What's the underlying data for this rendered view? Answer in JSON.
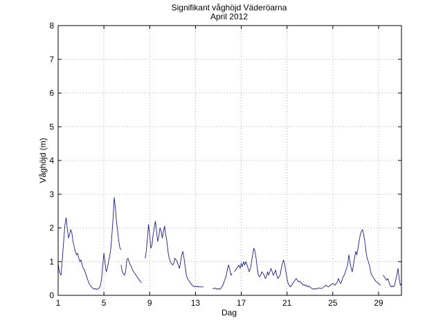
{
  "chart_data": {
    "type": "line",
    "title": "Signifikant våghöjd Väderöarna",
    "subtitle": "April 2012",
    "xlabel": "Dag",
    "ylabel": "Våghöjd (m)",
    "xlim": [
      1,
      31
    ],
    "ylim": [
      0,
      8
    ],
    "xticks": [
      1,
      5,
      9,
      13,
      17,
      21,
      25,
      29
    ],
    "yticks": [
      0,
      1,
      2,
      3,
      4,
      5,
      6,
      7,
      8
    ],
    "grid": true,
    "line_color": "#1a1a8c",
    "series": [
      {
        "segments": [
          [
            [
              1.0,
              0.95
            ],
            [
              1.1,
              0.7
            ],
            [
              1.25,
              0.6
            ],
            [
              1.35,
              1.0
            ],
            [
              1.5,
              1.7
            ],
            [
              1.6,
              2.1
            ],
            [
              1.7,
              2.3
            ],
            [
              1.8,
              2.0
            ],
            [
              1.9,
              1.7
            ],
            [
              2.0,
              1.8
            ],
            [
              2.1,
              1.95
            ],
            [
              2.2,
              1.85
            ],
            [
              2.3,
              1.6
            ],
            [
              2.4,
              1.45
            ],
            [
              2.5,
              1.3
            ],
            [
              2.6,
              1.2
            ],
            [
              2.7,
              1.25
            ],
            [
              2.8,
              1.1
            ],
            [
              2.9,
              1.0
            ],
            [
              3.0,
              1.05
            ],
            [
              3.1,
              0.9
            ],
            [
              3.2,
              0.8
            ],
            [
              3.3,
              0.75
            ],
            [
              3.4,
              0.65
            ],
            [
              3.5,
              0.55
            ],
            [
              3.6,
              0.45
            ],
            [
              3.7,
              0.35
            ],
            [
              3.8,
              0.3
            ],
            [
              3.9,
              0.25
            ],
            [
              4.0,
              0.22
            ],
            [
              4.1,
              0.2
            ],
            [
              4.2,
              0.18
            ],
            [
              4.3,
              0.2
            ],
            [
              4.4,
              0.17
            ],
            [
              4.5,
              0.2
            ],
            [
              4.6,
              0.22
            ],
            [
              4.7,
              0.3
            ],
            [
              4.8,
              0.5
            ],
            [
              4.9,
              0.9
            ],
            [
              5.0,
              1.25
            ],
            [
              5.1,
              0.95
            ],
            [
              5.2,
              0.7
            ],
            [
              5.3,
              0.8
            ],
            [
              5.4,
              1.0
            ],
            [
              5.5,
              1.15
            ],
            [
              5.6,
              1.4
            ],
            [
              5.7,
              1.8
            ],
            [
              5.8,
              2.3
            ],
            [
              5.9,
              2.9
            ],
            [
              6.0,
              2.6
            ],
            [
              6.1,
              2.2
            ],
            [
              6.2,
              1.9
            ],
            [
              6.3,
              1.6
            ],
            [
              6.4,
              1.4
            ],
            [
              6.5,
              1.35
            ]
          ],
          [
            [
              6.5,
              0.9
            ],
            [
              6.6,
              0.7
            ],
            [
              6.7,
              0.65
            ],
            [
              6.8,
              0.6
            ],
            [
              6.9,
              0.7
            ],
            [
              7.0,
              1.05
            ],
            [
              7.1,
              1.1
            ],
            [
              7.2,
              1.0
            ],
            [
              7.3,
              0.9
            ],
            [
              7.4,
              0.85
            ],
            [
              7.5,
              0.75
            ],
            [
              7.6,
              0.7
            ],
            [
              7.7,
              0.65
            ],
            [
              7.8,
              0.6
            ],
            [
              7.9,
              0.55
            ],
            [
              8.0,
              0.5
            ],
            [
              8.1,
              0.45
            ],
            [
              8.2,
              0.4
            ],
            [
              8.3,
              0.38
            ]
          ],
          [
            [
              8.6,
              1.1
            ],
            [
              8.7,
              1.3
            ],
            [
              8.8,
              1.7
            ],
            [
              8.9,
              2.1
            ],
            [
              9.0,
              1.8
            ],
            [
              9.1,
              1.4
            ],
            [
              9.2,
              1.5
            ],
            [
              9.3,
              1.8
            ],
            [
              9.4,
              2.0
            ],
            [
              9.5,
              2.2
            ],
            [
              9.6,
              1.9
            ],
            [
              9.7,
              1.6
            ],
            [
              9.8,
              1.75
            ],
            [
              9.9,
              2.0
            ],
            [
              10.0,
              1.9
            ],
            [
              10.1,
              1.7
            ],
            [
              10.2,
              1.9
            ],
            [
              10.3,
              2.05
            ],
            [
              10.4,
              1.8
            ],
            [
              10.5,
              1.6
            ],
            [
              10.6,
              1.3
            ],
            [
              10.7,
              1.1
            ],
            [
              10.8,
              1.0
            ],
            [
              10.9,
              0.95
            ],
            [
              11.0,
              0.9
            ],
            [
              11.1,
              0.95
            ],
            [
              11.2,
              1.1
            ],
            [
              11.3,
              1.05
            ],
            [
              11.4,
              1.0
            ],
            [
              11.5,
              0.9
            ],
            [
              11.6,
              0.8
            ],
            [
              11.7,
              1.0
            ],
            [
              11.8,
              1.2
            ],
            [
              11.9,
              1.3
            ],
            [
              12.0,
              1.1
            ],
            [
              12.1,
              0.85
            ],
            [
              12.2,
              0.6
            ],
            [
              12.3,
              0.5
            ],
            [
              12.4,
              0.45
            ],
            [
              12.5,
              0.4
            ],
            [
              12.6,
              0.35
            ],
            [
              12.7,
              0.3
            ],
            [
              12.8,
              0.28
            ],
            [
              12.9,
              0.25
            ],
            [
              13.0,
              0.28
            ],
            [
              13.1,
              0.25
            ],
            [
              13.2,
              0.27
            ],
            [
              13.3,
              0.25
            ],
            [
              13.5,
              0.25
            ],
            [
              13.7,
              0.25
            ]
          ],
          [
            [
              14.5,
              0.2
            ],
            [
              14.6,
              0.2
            ],
            [
              14.7,
              0.22
            ],
            [
              14.8,
              0.2
            ],
            [
              14.9,
              0.18
            ],
            [
              15.0,
              0.2
            ],
            [
              15.1,
              0.18
            ],
            [
              15.2,
              0.2
            ],
            [
              15.3,
              0.25
            ],
            [
              15.4,
              0.3
            ],
            [
              15.5,
              0.4
            ],
            [
              15.6,
              0.5
            ],
            [
              15.7,
              0.6
            ],
            [
              15.8,
              0.8
            ],
            [
              15.9,
              0.9
            ],
            [
              16.0,
              0.75
            ],
            [
              16.1,
              0.6
            ],
            [
              16.2,
              0.65
            ]
          ],
          [
            [
              16.4,
              0.7
            ],
            [
              16.5,
              0.75
            ],
            [
              16.6,
              0.8
            ],
            [
              16.7,
              0.85
            ],
            [
              16.8,
              0.9
            ],
            [
              16.9,
              0.8
            ],
            [
              17.0,
              0.95
            ],
            [
              17.1,
              0.85
            ],
            [
              17.2,
              1.0
            ],
            [
              17.3,
              0.9
            ],
            [
              17.4,
              1.0
            ],
            [
              17.5,
              0.9
            ],
            [
              17.6,
              0.8
            ],
            [
              17.7,
              0.7
            ],
            [
              17.8,
              0.8
            ],
            [
              17.9,
              1.0
            ],
            [
              18.0,
              1.2
            ],
            [
              18.1,
              1.4
            ],
            [
              18.2,
              1.3
            ],
            [
              18.3,
              1.1
            ],
            [
              18.4,
              0.8
            ],
            [
              18.5,
              0.6
            ],
            [
              18.6,
              0.55
            ],
            [
              18.7,
              0.6
            ],
            [
              18.8,
              0.7
            ],
            [
              18.9,
              0.65
            ],
            [
              19.0,
              0.6
            ],
            [
              19.1,
              0.5
            ],
            [
              19.2,
              0.55
            ],
            [
              19.3,
              0.7
            ],
            [
              19.4,
              0.6
            ],
            [
              19.5,
              0.7
            ],
            [
              19.6,
              0.8
            ],
            [
              19.7,
              0.7
            ],
            [
              19.8,
              0.6
            ],
            [
              19.9,
              0.65
            ],
            [
              20.0,
              0.75
            ],
            [
              20.1,
              0.6
            ],
            [
              20.2,
              0.5
            ],
            [
              20.3,
              0.55
            ],
            [
              20.4,
              0.6
            ],
            [
              20.5,
              0.8
            ],
            [
              20.6,
              0.95
            ],
            [
              20.7,
              1.05
            ],
            [
              20.8,
              0.9
            ],
            [
              20.9,
              0.7
            ],
            [
              21.0,
              0.5
            ],
            [
              21.1,
              0.35
            ],
            [
              21.2,
              0.3
            ],
            [
              21.3,
              0.25
            ],
            [
              21.4,
              0.3
            ],
            [
              21.5,
              0.35
            ],
            [
              21.6,
              0.4
            ],
            [
              21.7,
              0.45
            ],
            [
              21.8,
              0.5
            ],
            [
              21.9,
              0.45
            ],
            [
              22.0,
              0.4
            ],
            [
              22.1,
              0.42
            ],
            [
              22.2,
              0.38
            ],
            [
              22.3,
              0.35
            ],
            [
              22.4,
              0.3
            ],
            [
              22.5,
              0.32
            ],
            [
              22.6,
              0.28
            ],
            [
              22.7,
              0.3
            ],
            [
              22.8,
              0.25
            ],
            [
              22.9,
              0.28
            ],
            [
              23.0,
              0.25
            ],
            [
              23.1,
              0.22
            ],
            [
              23.2,
              0.2
            ],
            [
              23.3,
              0.18
            ],
            [
              23.4,
              0.2
            ],
            [
              23.5,
              0.18
            ],
            [
              23.6,
              0.2
            ],
            [
              23.8,
              0.22
            ],
            [
              24.0,
              0.2
            ],
            [
              24.2,
              0.25
            ],
            [
              24.4,
              0.3
            ],
            [
              24.6,
              0.25
            ],
            [
              24.8,
              0.3
            ],
            [
              25.0,
              0.35
            ],
            [
              25.2,
              0.3
            ],
            [
              25.4,
              0.4
            ],
            [
              25.5,
              0.5
            ],
            [
              25.6,
              0.4
            ],
            [
              25.7,
              0.35
            ],
            [
              25.8,
              0.45
            ],
            [
              25.9,
              0.55
            ],
            [
              26.0,
              0.6
            ],
            [
              26.1,
              0.7
            ],
            [
              26.2,
              0.8
            ],
            [
              26.3,
              0.9
            ],
            [
              26.4,
              1.2
            ],
            [
              26.5,
              1.0
            ],
            [
              26.6,
              0.8
            ],
            [
              26.7,
              0.7
            ],
            [
              26.8,
              0.9
            ],
            [
              26.9,
              1.1
            ],
            [
              27.0,
              1.3
            ],
            [
              27.1,
              1.2
            ],
            [
              27.2,
              1.4
            ],
            [
              27.3,
              1.6
            ],
            [
              27.4,
              1.8
            ],
            [
              27.5,
              1.9
            ],
            [
              27.6,
              1.95
            ],
            [
              27.7,
              1.8
            ],
            [
              27.8,
              1.6
            ],
            [
              27.9,
              1.3
            ],
            [
              28.0,
              1.1
            ],
            [
              28.1,
              1.0
            ],
            [
              28.2,
              0.9
            ],
            [
              28.3,
              0.7
            ],
            [
              28.4,
              0.6
            ],
            [
              28.5,
              0.55
            ],
            [
              28.6,
              0.5
            ],
            [
              28.7,
              0.45
            ],
            [
              28.8,
              0.4
            ],
            [
              28.9,
              0.38
            ],
            [
              29.0,
              0.35
            ],
            [
              29.1,
              0.32
            ],
            [
              29.2,
              0.3
            ]
          ],
          [
            [
              29.4,
              0.6
            ],
            [
              29.5,
              0.55
            ],
            [
              29.6,
              0.5
            ],
            [
              29.7,
              0.45
            ],
            [
              29.8,
              0.5
            ],
            [
              29.9,
              0.4
            ],
            [
              30.0,
              0.3
            ],
            [
              30.1,
              0.25
            ],
            [
              30.2,
              0.28
            ],
            [
              30.3,
              0.25
            ],
            [
              30.4,
              0.3
            ],
            [
              30.5,
              0.45
            ],
            [
              30.6,
              0.6
            ],
            [
              30.7,
              0.8
            ],
            [
              30.8,
              0.5
            ],
            [
              30.9,
              0.3
            ],
            [
              31.0,
              0.35
            ]
          ]
        ]
      }
    ]
  }
}
